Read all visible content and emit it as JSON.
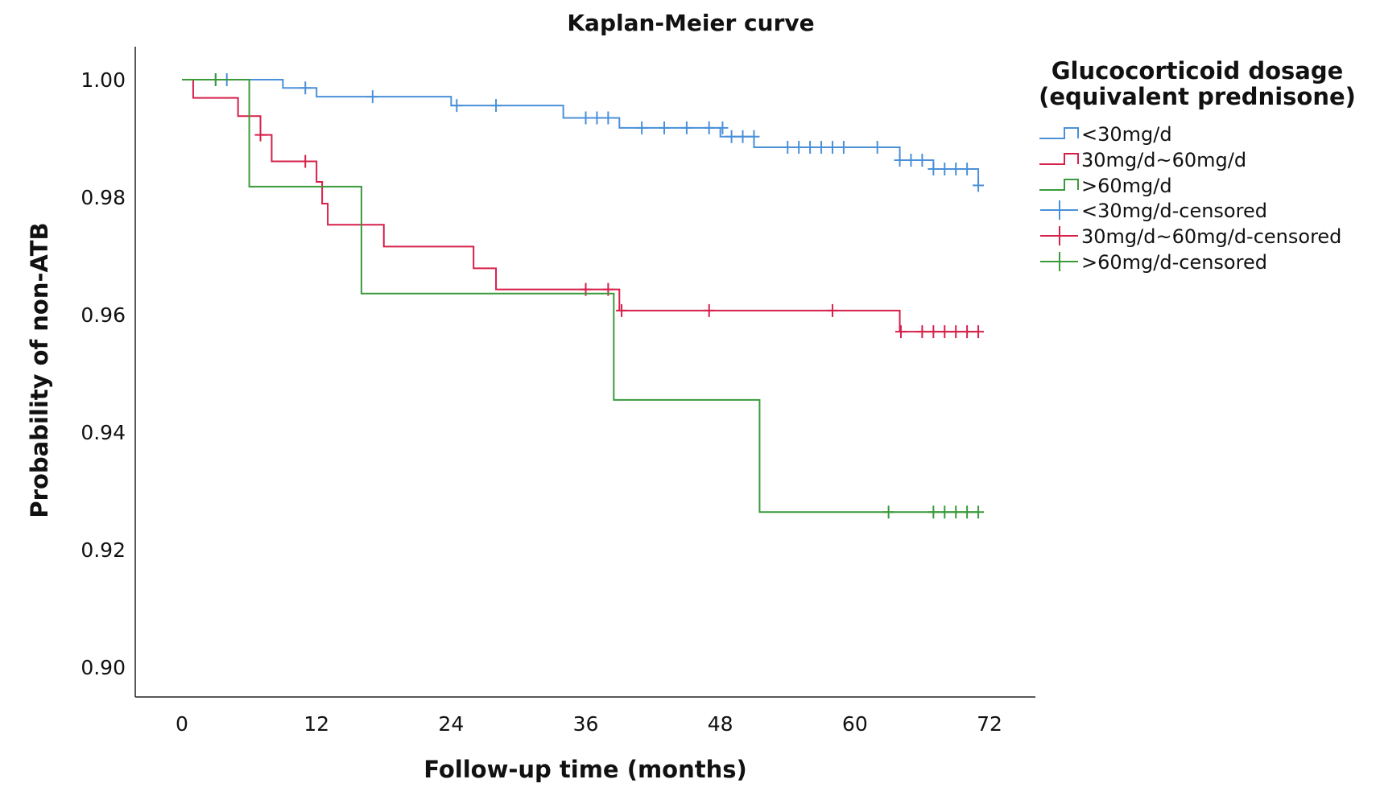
{
  "chart_data": {
    "type": "line",
    "subtype": "kaplan-meier step curve",
    "title": "Kaplan-Meier curve",
    "xlabel": "Follow-up time (months)",
    "ylabel": "Probability of non-ATB",
    "xlim": [
      -4,
      76
    ],
    "ylim": [
      0.895,
      1.005
    ],
    "x_ticks": [
      0,
      12,
      24,
      36,
      48,
      60,
      72
    ],
    "y_ticks": [
      0.9,
      0.92,
      0.94,
      0.96,
      0.98,
      1.0
    ],
    "y_tick_labels": [
      "0.90",
      "0.92",
      "0.94",
      "0.96",
      "0.98",
      "1.00"
    ],
    "grid": false,
    "legend": {
      "placement": "right",
      "title_line1": "Glucocorticoid dosage",
      "title_line2": "(equivalent prednisone)",
      "entries": [
        {
          "label": "<30mg/d",
          "kind": "step",
          "color": "#4a90d9"
        },
        {
          "label": "30mg/d~60mg/d",
          "kind": "step",
          "color": "#d6204a"
        },
        {
          "label": ">60mg/d",
          "kind": "step",
          "color": "#3a9a3a"
        },
        {
          "label": "<30mg/d-censored",
          "kind": "censored",
          "color": "#4a90d9"
        },
        {
          "label": "30mg/d~60mg/d-censored",
          "kind": "censored",
          "color": "#d6204a"
        },
        {
          "label": ">60mg/d-censored",
          "kind": "censored",
          "color": "#3a9a3a"
        }
      ]
    },
    "series": [
      {
        "name": "<30mg/d",
        "color": "#4a90d9",
        "steps": [
          [
            0,
            1.0
          ],
          [
            9,
            0.9986
          ],
          [
            12,
            0.9971
          ],
          [
            24,
            0.9956
          ],
          [
            34,
            0.9935
          ],
          [
            39,
            0.9918
          ],
          [
            48,
            0.9903
          ],
          [
            51,
            0.9885
          ],
          [
            64,
            0.9863
          ],
          [
            67,
            0.9848
          ],
          [
            71,
            0.982
          ]
        ],
        "end_x": 71,
        "censored": [
          [
            3,
            1.0
          ],
          [
            4,
            1.0
          ],
          [
            11,
            0.9986
          ],
          [
            17,
            0.9971
          ],
          [
            24.5,
            0.9956
          ],
          [
            28,
            0.9956
          ],
          [
            36,
            0.9935
          ],
          [
            37,
            0.9935
          ],
          [
            38,
            0.9935
          ],
          [
            41,
            0.9918
          ],
          [
            43,
            0.9918
          ],
          [
            45,
            0.9918
          ],
          [
            47,
            0.9918
          ],
          [
            48.2,
            0.9918
          ],
          [
            49,
            0.9903
          ],
          [
            50,
            0.9903
          ],
          [
            51,
            0.9903
          ],
          [
            54,
            0.9885
          ],
          [
            55,
            0.9885
          ],
          [
            56,
            0.9885
          ],
          [
            57,
            0.9885
          ],
          [
            58,
            0.9885
          ],
          [
            59,
            0.9885
          ],
          [
            62,
            0.9885
          ],
          [
            64,
            0.9863
          ],
          [
            65,
            0.9863
          ],
          [
            66,
            0.9863
          ],
          [
            67,
            0.9848
          ],
          [
            68,
            0.9848
          ],
          [
            69,
            0.9848
          ],
          [
            70,
            0.9848
          ],
          [
            71,
            0.982
          ]
        ]
      },
      {
        "name": "30mg/d~60mg/d",
        "color": "#d6204a",
        "steps": [
          [
            0,
            1.0
          ],
          [
            1,
            0.9969
          ],
          [
            5,
            0.9938
          ],
          [
            7,
            0.9906
          ],
          [
            8,
            0.9861
          ],
          [
            12,
            0.9826
          ],
          [
            12.5,
            0.9789
          ],
          [
            13,
            0.9753
          ],
          [
            18,
            0.9716
          ],
          [
            26,
            0.9679
          ],
          [
            28,
            0.9643
          ],
          [
            39,
            0.9607
          ],
          [
            64,
            0.9571
          ]
        ],
        "end_x": 71,
        "censored": [
          [
            7,
            0.9906
          ],
          [
            11,
            0.9861
          ],
          [
            36,
            0.9643
          ],
          [
            38,
            0.9643
          ],
          [
            39.2,
            0.9607
          ],
          [
            47,
            0.9607
          ],
          [
            58,
            0.9607
          ],
          [
            64.1,
            0.9571
          ],
          [
            66,
            0.9571
          ],
          [
            67,
            0.9571
          ],
          [
            68,
            0.9571
          ],
          [
            69,
            0.9571
          ],
          [
            70,
            0.9571
          ],
          [
            71,
            0.9571
          ]
        ]
      },
      {
        "name": ">60mg/d",
        "color": "#3a9a3a",
        "steps": [
          [
            0,
            1.0
          ],
          [
            6,
            0.9818
          ],
          [
            16,
            0.9636
          ],
          [
            38.5,
            0.9455
          ],
          [
            51.5,
            0.9264
          ]
        ],
        "end_x": 71,
        "censored": [
          [
            3,
            1.0
          ],
          [
            63,
            0.9264
          ],
          [
            67,
            0.9264
          ],
          [
            68,
            0.9264
          ],
          [
            69,
            0.9264
          ],
          [
            70,
            0.9264
          ],
          [
            71,
            0.9264
          ]
        ]
      }
    ]
  }
}
